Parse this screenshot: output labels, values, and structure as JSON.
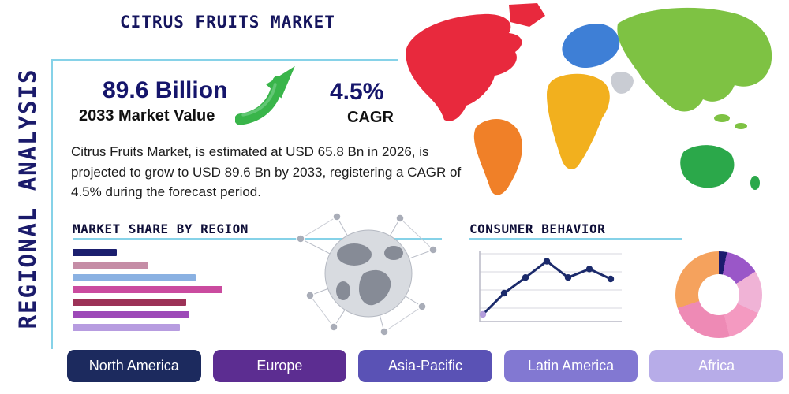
{
  "page": {
    "title": "CITRUS FRUITS MARKET",
    "vertical_label": "REGIONAL ANALYSIS"
  },
  "stats": {
    "market_value": "89.6 Billion",
    "market_value_label": "2033 Market Value",
    "cagr": "4.5%",
    "cagr_label": "CAGR"
  },
  "description": "Citrus Fruits Market, is estimated at USD 65.8 Bn in 2026, is projected to grow to USD 89.6 Bn by 2033, registering a CAGR of 4.5% during the forecast period.",
  "section_headings": {
    "market_share": "MARKET SHARE BY REGION",
    "consumer_behavior": "CONSUMER BEHAVIOR"
  },
  "region_buttons": [
    {
      "label": "North America",
      "color": "#1c2a5e"
    },
    {
      "label": "Europe",
      "color": "#5c2d91"
    },
    {
      "label": "Asia-Pacific",
      "color": "#5a52b5"
    },
    {
      "label": "Latin America",
      "color": "#8278d2"
    },
    {
      "label": "Africa",
      "color": "#b7ace8"
    }
  ],
  "map": {
    "regions": [
      {
        "id": "north-america",
        "color": "#e8293d"
      },
      {
        "id": "greenland",
        "color": "#e8293d"
      },
      {
        "id": "south-america",
        "color": "#f08028"
      },
      {
        "id": "europe",
        "color": "#3e7fd6"
      },
      {
        "id": "africa",
        "color": "#f2b01e"
      },
      {
        "id": "middle-east",
        "color": "#c9ccd3"
      },
      {
        "id": "asia",
        "color": "#7ec243"
      },
      {
        "id": "australia",
        "color": "#2ba84a"
      }
    ]
  },
  "theme": {
    "accent_line": "#86d2e8",
    "navy": "#15156b",
    "arrow_green": "#39b54a"
  },
  "chart_data": [
    {
      "type": "bar",
      "title": "Market Share by Region",
      "orientation": "horizontal",
      "values": [
        28,
        48,
        78,
        95,
        72,
        74,
        68
      ],
      "colors": [
        "#1b1f6e",
        "#c58da6",
        "#8ab1e2",
        "#ca4b9f",
        "#9c3257",
        "#9d49b8",
        "#b79ce0"
      ],
      "value_unit": "relative-percent-of-max",
      "axis_labels_visible": false,
      "grid": false
    },
    {
      "type": "line",
      "title": "Consumer Behavior",
      "x": [
        1,
        2,
        3,
        4,
        5,
        6,
        7
      ],
      "values": [
        10,
        40,
        62,
        85,
        62,
        74,
        60
      ],
      "line_color": "#1b2a6b",
      "first_point_color": "#b39ddb",
      "grid": true,
      "axis_labels_visible": false
    },
    {
      "type": "pie",
      "title": "",
      "donut": true,
      "slices": [
        {
          "value": 3,
          "color": "#1b1b6e"
        },
        {
          "value": 13,
          "color": "#9a57c8"
        },
        {
          "value": 16,
          "color": "#f0b3d6"
        },
        {
          "value": 14,
          "color": "#f49ac1"
        },
        {
          "value": 24,
          "color": "#ee8ab5"
        },
        {
          "value": 30,
          "color": "#f5a25d"
        }
      ]
    }
  ]
}
